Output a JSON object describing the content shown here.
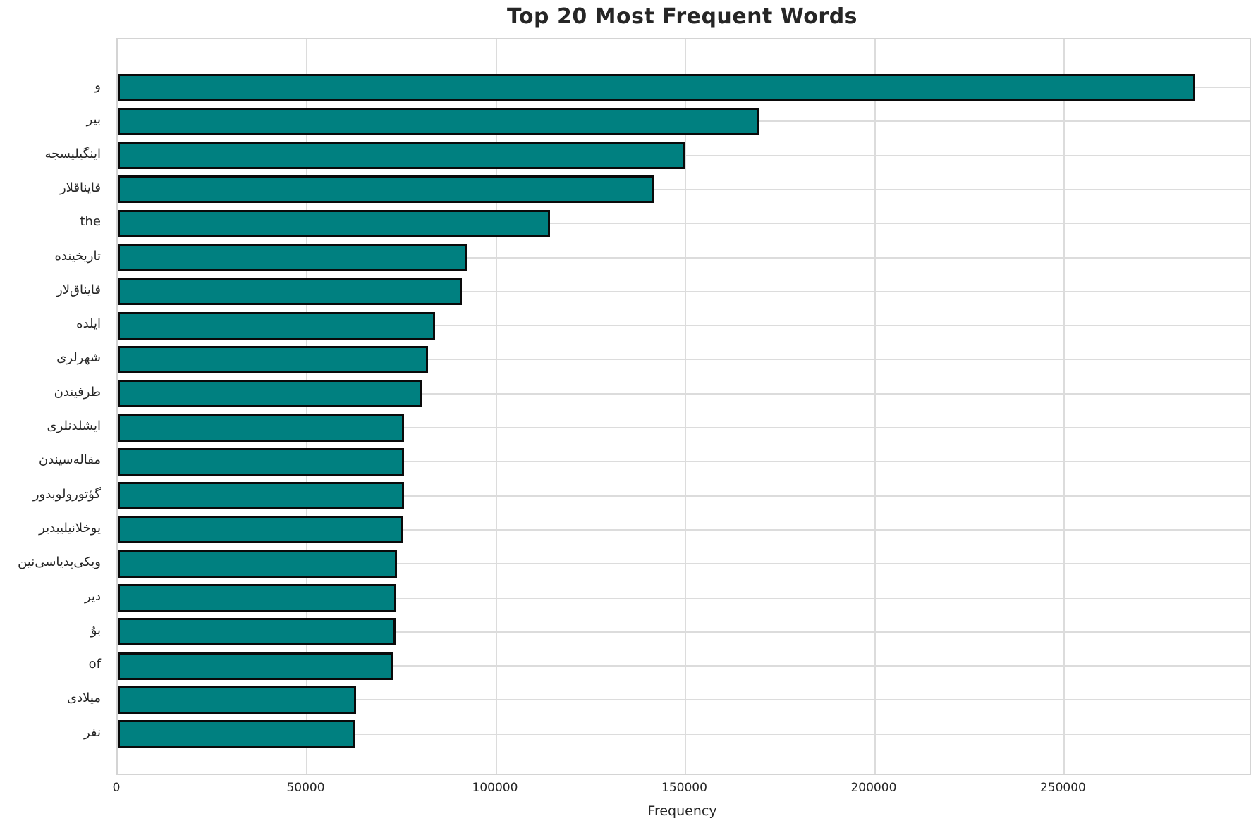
{
  "chart_data": {
    "type": "bar",
    "orientation": "horizontal",
    "title": "Top 20 Most Frequent Words",
    "xlabel": "Frequency",
    "ylabel": "",
    "categories": [
      "و",
      "بیر",
      "اینگیلیسجه",
      "قایناقلار",
      "the",
      "تاریخینده",
      "قایناق‌لار",
      "ایلده",
      "شهرلری",
      "طرفیندن",
      "ایشلدنلری",
      "مقاله‌سیندن",
      "گؤتورولوبدور",
      "یوخلانیلیبدیر",
      "ویکی‌پدیاسی‌نین",
      "دیر",
      "بۇ",
      "of",
      "میلادی",
      "نفر"
    ],
    "values": [
      284500,
      169200,
      149700,
      141800,
      114100,
      92100,
      90800,
      83800,
      81900,
      80300,
      75700,
      75600,
      75600,
      75500,
      73700,
      73500,
      73300,
      72700,
      63000,
      62800
    ],
    "xlim": [
      0,
      298900
    ],
    "xticks": [
      0,
      50000,
      100000,
      150000,
      200000,
      250000
    ],
    "grid": true,
    "legend": false,
    "bar_color": "#008080",
    "bar_edge_color": "#0a0a0a",
    "grid_color": "#dcdcdc",
    "title_color": "#262626",
    "tick_label_color": "#262626"
  }
}
